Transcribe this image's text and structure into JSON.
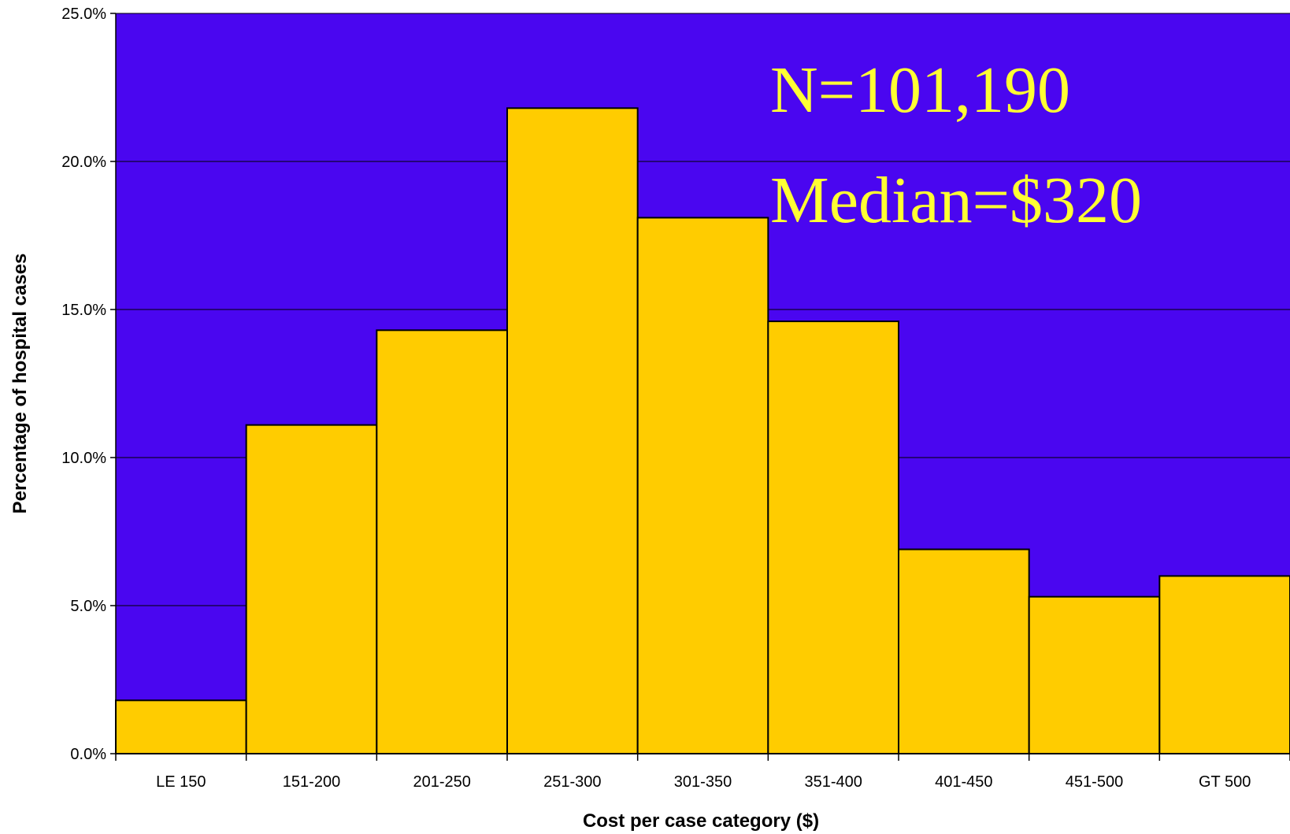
{
  "chart_data": {
    "type": "bar",
    "categories": [
      "LE 150",
      "151-200",
      "201-250",
      "251-300",
      "301-350",
      "351-400",
      "401-450",
      "451-500",
      "GT 500"
    ],
    "values": [
      1.8,
      11.1,
      14.3,
      21.8,
      18.1,
      14.6,
      6.9,
      5.3,
      6.0
    ],
    "xlabel": "Cost per case category ($)",
    "ylabel": "Percentage of hospital cases",
    "ylim": [
      0,
      25
    ],
    "yticks": [
      "0.0%",
      "5.0%",
      "10.0%",
      "15.0%",
      "20.0%",
      "25.0%"
    ],
    "annotations": [
      "N=101,190",
      "Median=$320"
    ],
    "grid": true,
    "legend": "none",
    "colors": {
      "plot_background": "#4a06f0",
      "bar_fill": "#ffcc00",
      "bar_stroke": "#000000",
      "annotation_text": "#ffff33"
    }
  }
}
